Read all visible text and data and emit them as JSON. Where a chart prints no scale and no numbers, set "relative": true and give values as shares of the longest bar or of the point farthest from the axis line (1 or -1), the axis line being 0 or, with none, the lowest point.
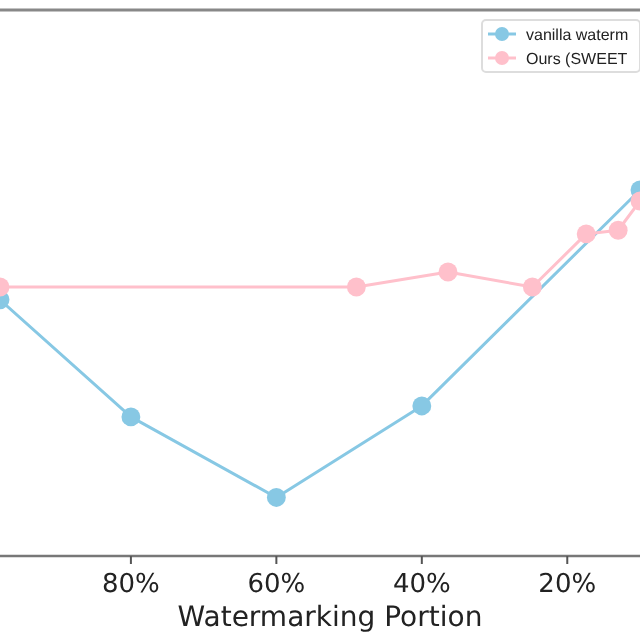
{
  "chart_data": {
    "type": "line",
    "xlabel": "Watermarking Portion",
    "relative": true,
    "xlim": [
      98,
      10
    ],
    "xticks": [
      {
        "value": 80,
        "label": "80%"
      },
      {
        "value": 60,
        "label": "60%"
      },
      {
        "value": 40,
        "label": "40%"
      },
      {
        "value": 20,
        "label": "20%"
      }
    ],
    "marker": "circle",
    "legend": "top right",
    "grid": false,
    "series": [
      {
        "name": "vanilla waterm",
        "color": "#87c8e4",
        "x": [
          98,
          80,
          60,
          40,
          10
        ],
        "values": [
          0.7,
          0.38,
          0.16,
          0.41,
          1
        ]
      },
      {
        "name": "Ours (SWEET",
        "color": "#ffc0cb",
        "x": [
          98,
          49,
          36.4,
          24.8,
          17.4,
          13,
          10
        ],
        "values": [
          0.735,
          0.735,
          0.776,
          0.735,
          0.88,
          0.89,
          0.97
        ]
      }
    ]
  }
}
